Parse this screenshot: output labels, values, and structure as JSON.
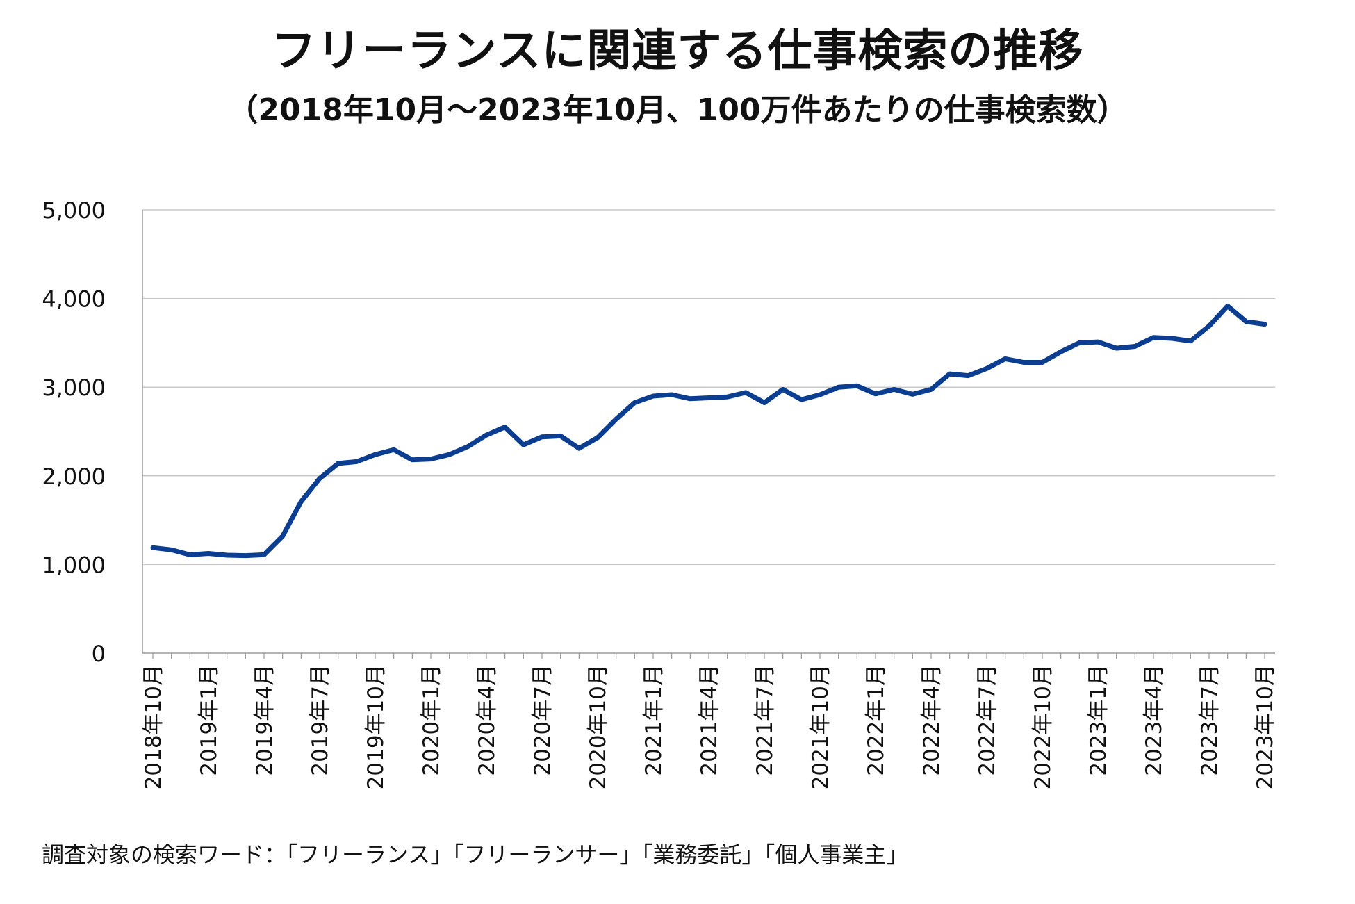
{
  "chart_data": {
    "type": "line",
    "title": "フリーランスに関連する仕事検索の推移",
    "subtitle": "（2018年10月～2023年10月、100万件あたりの仕事検索数）",
    "xlabel": "",
    "ylabel": "",
    "ylim": [
      0,
      5000
    ],
    "yticks": [
      "0",
      "1,000",
      "2,000",
      "3,000",
      "4,000",
      "5,000"
    ],
    "ytick_values": [
      0,
      1000,
      2000,
      3000,
      4000,
      5000
    ],
    "xtick_labels": [
      "2018年10月",
      "2019年1月",
      "2019年4月",
      "2019年7月",
      "2019年10月",
      "2020年1月",
      "2020年4月",
      "2020年7月",
      "2020年10月",
      "2021年1月",
      "2021年4月",
      "2021年7月",
      "2021年10月",
      "2022年1月",
      "2022年4月",
      "2022年7月",
      "2022年10月",
      "2023年1月",
      "2023年4月",
      "2023年7月",
      "2023年10月"
    ],
    "grid": true,
    "line_color": "#0b3d91",
    "x": [
      "2018-10",
      "2018-11",
      "2018-12",
      "2019-01",
      "2019-02",
      "2019-03",
      "2019-04",
      "2019-05",
      "2019-06",
      "2019-07",
      "2019-08",
      "2019-09",
      "2019-10",
      "2019-11",
      "2019-12",
      "2020-01",
      "2020-02",
      "2020-03",
      "2020-04",
      "2020-05",
      "2020-06",
      "2020-07",
      "2020-08",
      "2020-09",
      "2020-10",
      "2020-11",
      "2020-12",
      "2021-01",
      "2021-02",
      "2021-03",
      "2021-04",
      "2021-05",
      "2021-06",
      "2021-07",
      "2021-08",
      "2021-09",
      "2021-10",
      "2021-11",
      "2021-12",
      "2022-01",
      "2022-02",
      "2022-03",
      "2022-04",
      "2022-05",
      "2022-06",
      "2022-07",
      "2022-08",
      "2022-09",
      "2022-10",
      "2022-11",
      "2022-12",
      "2023-01",
      "2023-02",
      "2023-03",
      "2023-04",
      "2023-05",
      "2023-06",
      "2023-07",
      "2023-08",
      "2023-09",
      "2023-10"
    ],
    "series": [
      {
        "values": [
          1190,
          1165,
          1110,
          1125,
          1105,
          1100,
          1110,
          1320,
          1710,
          1970,
          2140,
          2160,
          2240,
          2295,
          2180,
          2190,
          2240,
          2330,
          2460,
          2550,
          2350,
          2440,
          2450,
          2310,
          2430,
          2640,
          2825,
          2900,
          2915,
          2870,
          2880,
          2890,
          2940,
          2825,
          2975,
          2860,
          2915,
          3000,
          3015,
          2925,
          2975,
          2920,
          2975,
          3150,
          3130,
          3210,
          3320,
          3280,
          3280,
          3400,
          3500,
          3510,
          3440,
          3460,
          3560,
          3550,
          3520,
          3690,
          3915,
          3740,
          3710
        ]
      }
    ]
  },
  "footnote": "調査対象の検索ワード：「フリーランス」「フリーランサー」「業務委託」「個人事業主」"
}
